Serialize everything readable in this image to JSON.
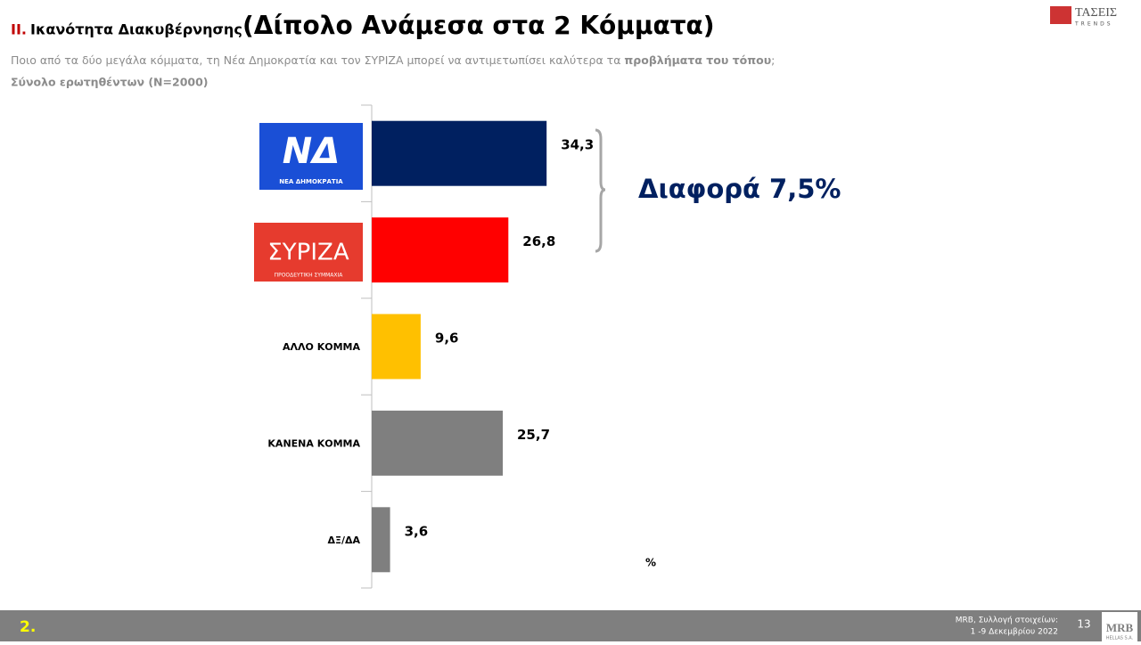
{
  "header": {
    "section": "II.",
    "title": "Ικανότητα Διακυβέρνησης",
    "title_large": "(Δίπολο Ανάμεσα στα 2 Κόμματα)",
    "question": "Ποιο από τα δύο μεγάλα κόμματα, τη Νέα Δημοκρατία και τον ΣΥΡΙΖΑ μπορεί να αντιμετωπίσει καλύτερα  τα",
    "question_bold": "προβλήματα του τόπου",
    "question_end": ";",
    "base": "Σύνολο ερωτηθέντων (N=2000)",
    "brand": "ΤΑΣΕΙΣ",
    "brand_sub": "TRENDS"
  },
  "chart_data": {
    "type": "bar",
    "orientation": "horizontal",
    "categories": [
      "ΝΕΑ ΔΗΜΟΚΡΑΤΙΑ",
      "ΣΥΡΙΖΑ",
      "ΑΛΛΟ ΚΟΜΜΑ",
      "ΚΑΝΕΝΑ ΚΟΜΜΑ",
      "ΔΞ/ΔΑ"
    ],
    "values": [
      34.3,
      26.8,
      9.6,
      25.7,
      3.6
    ],
    "value_labels": [
      "34,3",
      "26,8",
      "9,6",
      "25,7",
      "3,6"
    ],
    "colors": [
      "#002060",
      "#ff0000",
      "#ffc000",
      "#7f7f7f",
      "#7f7f7f"
    ],
    "annotation": "Διαφορά 7,5%",
    "unit": "%"
  },
  "logos": {
    "nd_mark": "ΝΔ",
    "syriza_tagline": "ΠΡΟΟΔΕΥΤΙΚΗ ΣΥΜΜΑΧΙΑ"
  },
  "footer": {
    "slide_label": "2.",
    "source_line1": "MRB, Συλλογή στοιχείων:",
    "source_line2": "1 -9 Δεκεμβρίου 2022",
    "page": "13",
    "company": "MRB",
    "company_sub": "HELLAS S.A."
  }
}
